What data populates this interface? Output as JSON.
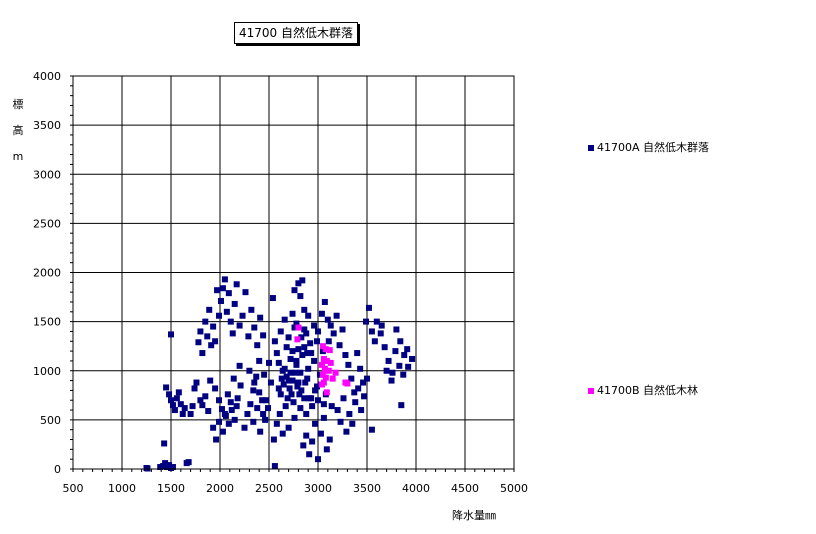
{
  "chart_data": {
    "type": "scatter",
    "title": "41700 自然低木群落",
    "xlabel": "降水量㎜",
    "ylabel": "標高m",
    "ylabel_chars": [
      "標",
      "高",
      "m"
    ],
    "xlim": [
      500,
      5000
    ],
    "ylim": [
      0,
      4000
    ],
    "xticks": [
      500,
      1000,
      1500,
      2000,
      2500,
      3000,
      3500,
      4000,
      4500,
      5000
    ],
    "yticks": [
      0,
      500,
      1000,
      1500,
      2000,
      2500,
      3000,
      3500,
      4000
    ],
    "grid": true,
    "legend_placement": "right",
    "series": [
      {
        "name": "41700A 自然低木群落",
        "color": "#000080",
        "points": [
          [
            1250,
            10
          ],
          [
            1260,
            5
          ],
          [
            1390,
            20
          ],
          [
            1420,
            30
          ],
          [
            1430,
            260
          ],
          [
            1440,
            60
          ],
          [
            1460,
            20
          ],
          [
            1480,
            40
          ],
          [
            1500,
            10
          ],
          [
            1520,
            20
          ],
          [
            1450,
            830
          ],
          [
            1480,
            760
          ],
          [
            1500,
            700
          ],
          [
            1520,
            650
          ],
          [
            1540,
            600
          ],
          [
            1560,
            720
          ],
          [
            1580,
            780
          ],
          [
            1600,
            660
          ],
          [
            1620,
            560
          ],
          [
            1640,
            620
          ],
          [
            1660,
            60
          ],
          [
            1680,
            70
          ],
          [
            1700,
            560
          ],
          [
            1720,
            640
          ],
          [
            1740,
            820
          ],
          [
            1760,
            880
          ],
          [
            1800,
            700
          ],
          [
            1820,
            650
          ],
          [
            1850,
            740
          ],
          [
            1880,
            590
          ],
          [
            1500,
            1370
          ],
          [
            1780,
            1290
          ],
          [
            1800,
            1400
          ],
          [
            1820,
            1180
          ],
          [
            1850,
            1500
          ],
          [
            1870,
            1350
          ],
          [
            1890,
            1620
          ],
          [
            1910,
            1260
          ],
          [
            1930,
            1450
          ],
          [
            1950,
            1300
          ],
          [
            1970,
            1820
          ],
          [
            1990,
            1560
          ],
          [
            2010,
            1710
          ],
          [
            2030,
            1840
          ],
          [
            2050,
            1930
          ],
          [
            2070,
            1600
          ],
          [
            2090,
            1790
          ],
          [
            2110,
            1500
          ],
          [
            2130,
            1380
          ],
          [
            2150,
            1680
          ],
          [
            2170,
            1880
          ],
          [
            2200,
            1460
          ],
          [
            2230,
            1560
          ],
          [
            2260,
            1800
          ],
          [
            2290,
            1350
          ],
          [
            2320,
            1620
          ],
          [
            2350,
            1440
          ],
          [
            2380,
            1260
          ],
          [
            2410,
            1540
          ],
          [
            2440,
            1360
          ],
          [
            1900,
            900
          ],
          [
            1950,
            820
          ],
          [
            1990,
            700
          ],
          [
            2020,
            610
          ],
          [
            2050,
            560
          ],
          [
            2080,
            760
          ],
          [
            2110,
            680
          ],
          [
            2140,
            920
          ],
          [
            2170,
            640
          ],
          [
            2200,
            1050
          ],
          [
            1930,
            420
          ],
          [
            1960,
            300
          ],
          [
            1990,
            480
          ],
          [
            2030,
            380
          ],
          [
            2060,
            540
          ],
          [
            2090,
            460
          ],
          [
            2120,
            600
          ],
          [
            2150,
            500
          ],
          [
            2180,
            720
          ],
          [
            2210,
            850
          ],
          [
            2250,
            420
          ],
          [
            2280,
            560
          ],
          [
            2310,
            660
          ],
          [
            2340,
            800
          ],
          [
            2370,
            940
          ],
          [
            2400,
            1100
          ],
          [
            2430,
            700
          ],
          [
            2460,
            500
          ],
          [
            2490,
            620
          ],
          [
            2520,
            880
          ],
          [
            2540,
            1740
          ],
          [
            2560,
            1300
          ],
          [
            2580,
            1180
          ],
          [
            2600,
            1080
          ],
          [
            2620,
            1400
          ],
          [
            2640,
            1000
          ],
          [
            2660,
            1520
          ],
          [
            2680,
            1240
          ],
          [
            2700,
            900
          ],
          [
            2720,
            1120
          ],
          [
            2740,
            1580
          ],
          [
            2760,
            1820
          ],
          [
            2780,
            1480
          ],
          [
            2800,
            1890
          ],
          [
            2820,
            1760
          ],
          [
            2840,
            1920
          ],
          [
            2860,
            1620
          ],
          [
            2880,
            1380
          ],
          [
            2900,
            1560
          ],
          [
            2920,
            1280
          ],
          [
            2550,
            300
          ],
          [
            2580,
            460
          ],
          [
            2610,
            560
          ],
          [
            2640,
            360
          ],
          [
            2670,
            640
          ],
          [
            2700,
            420
          ],
          [
            2730,
            760
          ],
          [
            2760,
            520
          ],
          [
            2790,
            840
          ],
          [
            2820,
            620
          ],
          [
            2850,
            240
          ],
          [
            2880,
            340
          ],
          [
            2910,
            150
          ],
          [
            2940,
            280
          ],
          [
            2970,
            460
          ],
          [
            3000,
            100
          ],
          [
            3030,
            360
          ],
          [
            3060,
            520
          ],
          [
            3090,
            200
          ],
          [
            3120,
            300
          ],
          [
            2560,
            30
          ],
          [
            2600,
            820
          ],
          [
            2630,
            920
          ],
          [
            2660,
            1020
          ],
          [
            2690,
            720
          ],
          [
            2720,
            980
          ],
          [
            2750,
            680
          ],
          [
            2780,
            1060
          ],
          [
            2810,
            760
          ],
          [
            2840,
            1160
          ],
          [
            2870,
            880
          ],
          [
            2900,
            1020
          ],
          [
            2930,
            720
          ],
          [
            2960,
            1100
          ],
          [
            2990,
            840
          ],
          [
            3020,
            960
          ],
          [
            3050,
            1200
          ],
          [
            3080,
            760
          ],
          [
            3110,
            1300
          ],
          [
            3140,
            640
          ],
          [
            3000,
            1400
          ],
          [
            3040,
            1580
          ],
          [
            3070,
            1700
          ],
          [
            3100,
            1520
          ],
          [
            3130,
            1460
          ],
          [
            3160,
            1380
          ],
          [
            3190,
            1560
          ],
          [
            3220,
            1260
          ],
          [
            3250,
            1420
          ],
          [
            3280,
            1160
          ],
          [
            3310,
            1060
          ],
          [
            3340,
            920
          ],
          [
            3370,
            780
          ],
          [
            3400,
            1180
          ],
          [
            3430,
            1020
          ],
          [
            3460,
            880
          ],
          [
            3490,
            1500
          ],
          [
            3520,
            1640
          ],
          [
            3550,
            1400
          ],
          [
            3580,
            1300
          ],
          [
            3200,
            600
          ],
          [
            3230,
            480
          ],
          [
            3260,
            720
          ],
          [
            3290,
            380
          ],
          [
            3320,
            560
          ],
          [
            3350,
            460
          ],
          [
            3380,
            680
          ],
          [
            3410,
            820
          ],
          [
            3440,
            600
          ],
          [
            3470,
            740
          ],
          [
            3600,
            1500
          ],
          [
            3640,
            1380
          ],
          [
            3680,
            1240
          ],
          [
            3720,
            1100
          ],
          [
            3760,
            980
          ],
          [
            3800,
            1420
          ],
          [
            3840,
            1300
          ],
          [
            3880,
            1160
          ],
          [
            3920,
            1040
          ],
          [
            3960,
            1120
          ],
          [
            3650,
            1460
          ],
          [
            3700,
            1000
          ],
          [
            3750,
            900
          ],
          [
            3790,
            1200
          ],
          [
            3830,
            1050
          ],
          [
            3870,
            960
          ],
          [
            3910,
            1220
          ],
          [
            3850,
            650
          ],
          [
            3550,
            400
          ],
          [
            3500,
            920
          ],
          [
            2300,
            1000
          ],
          [
            2350,
            880
          ],
          [
            2400,
            780
          ],
          [
            2450,
            960
          ],
          [
            2500,
            1080
          ],
          [
            2470,
            700
          ],
          [
            2440,
            560
          ],
          [
            2410,
            380
          ],
          [
            2380,
            620
          ],
          [
            2340,
            480
          ],
          [
            2880,
            560
          ],
          [
            2910,
            720
          ],
          [
            2940,
            640
          ],
          [
            2970,
            800
          ],
          [
            3000,
            700
          ],
          [
            3030,
            860
          ],
          [
            3060,
            660
          ],
          [
            2990,
            1300
          ],
          [
            2960,
            1460
          ],
          [
            2930,
            1180
          ],
          [
            2700,
            1340
          ],
          [
            2740,
            1200
          ],
          [
            2780,
            1100
          ],
          [
            2820,
            980
          ],
          [
            2860,
            1240
          ],
          [
            2890,
            1180
          ],
          [
            2860,
            1420
          ],
          [
            2830,
            1340
          ],
          [
            2800,
            1220
          ],
          [
            2760,
            1440
          ],
          [
            2620,
            760
          ],
          [
            2650,
            860
          ],
          [
            2680,
            940
          ],
          [
            2710,
            820
          ],
          [
            2740,
            900
          ],
          [
            2770,
            980
          ],
          [
            2800,
            880
          ],
          [
            2830,
            800
          ],
          [
            2860,
            720
          ],
          [
            2890,
            920
          ]
        ]
      },
      {
        "name": "41700B 自然低木林",
        "color": "#ff00ff",
        "points": [
          [
            2800,
            1440
          ],
          [
            2790,
            1320
          ],
          [
            3050,
            1250
          ],
          [
            3080,
            1220
          ],
          [
            3120,
            1210
          ],
          [
            3060,
            1120
          ],
          [
            3090,
            1100
          ],
          [
            3040,
            1060
          ],
          [
            3070,
            1020
          ],
          [
            3110,
            1000
          ],
          [
            3050,
            960
          ],
          [
            3080,
            930
          ],
          [
            3150,
            920
          ],
          [
            3060,
            880
          ],
          [
            3040,
            860
          ],
          [
            3280,
            880
          ],
          [
            3300,
            870
          ],
          [
            3090,
            780
          ],
          [
            3130,
            1080
          ],
          [
            3180,
            980
          ]
        ]
      }
    ]
  }
}
